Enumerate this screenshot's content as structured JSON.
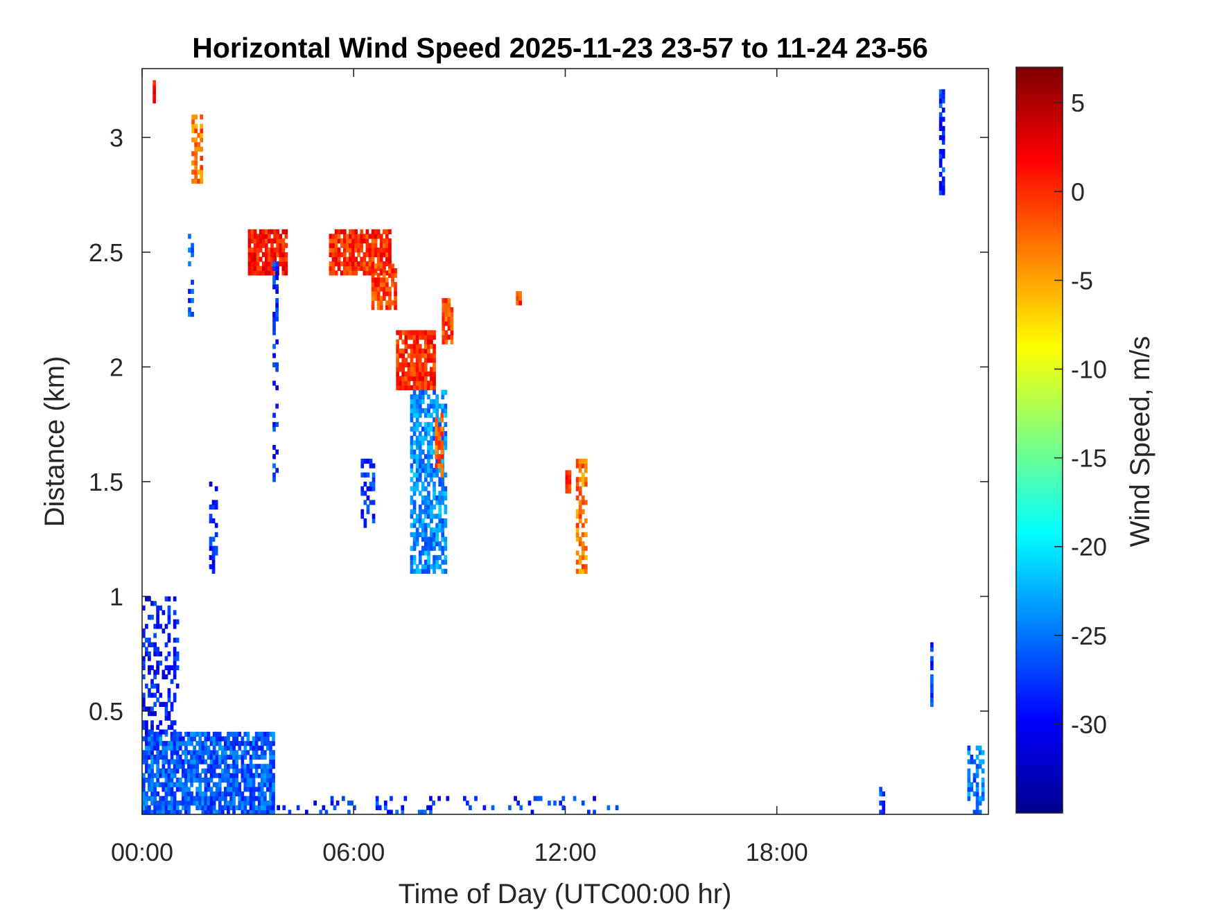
{
  "chart_data": {
    "type": "heatmap",
    "title": "Horizontal Wind Speed 2025-11-23 23-57 to 11-24 23-56",
    "xlabel": "Time of Day (UTC00:00 hr)",
    "ylabel": "Distance (km)",
    "colorbar_label": "Wind Speed, m/s",
    "colormap": "jet",
    "grid": false,
    "x_range_hours": [
      0,
      24
    ],
    "y_range_km": [
      0.05,
      3.3
    ],
    "color_range": [
      -35,
      7
    ],
    "x_ticks": [
      {
        "value": 0,
        "label": "00:00"
      },
      {
        "value": 6,
        "label": "06:00"
      },
      {
        "value": 12,
        "label": "12:00"
      },
      {
        "value": 18,
        "label": "18:00"
      }
    ],
    "y_ticks": [
      {
        "value": 0.5,
        "label": "0.5"
      },
      {
        "value": 1,
        "label": "1"
      },
      {
        "value": 1.5,
        "label": "1.5"
      },
      {
        "value": 2,
        "label": "2"
      },
      {
        "value": 2.5,
        "label": "2.5"
      },
      {
        "value": 3,
        "label": "3"
      }
    ],
    "colorbar_ticks": [
      {
        "value": 5,
        "label": "5"
      },
      {
        "value": 0,
        "label": "0"
      },
      {
        "value": -5,
        "label": "-5"
      },
      {
        "value": -10,
        "label": "-10"
      },
      {
        "value": -15,
        "label": "-15"
      },
      {
        "value": -20,
        "label": "-20"
      },
      {
        "value": -25,
        "label": "-25"
      },
      {
        "value": -30,
        "label": "-30"
      }
    ],
    "features": [
      {
        "t": [
          0.0,
          3.7
        ],
        "z": [
          0.05,
          0.4
        ],
        "v": -26,
        "density": 0.8
      },
      {
        "t": [
          0.0,
          1.0
        ],
        "z": [
          0.4,
          1.0
        ],
        "v": -29,
        "density": 0.35
      },
      {
        "t": [
          3.5,
          13.5
        ],
        "z": [
          0.05,
          0.12
        ],
        "v": -28,
        "density": 0.14
      },
      {
        "t": [
          0.3,
          0.35
        ],
        "z": [
          3.15,
          3.25
        ],
        "v": 2,
        "density": 1.0
      },
      {
        "t": [
          1.4,
          1.7
        ],
        "z": [
          2.8,
          3.1
        ],
        "v": -3,
        "density": 0.75
      },
      {
        "t": [
          1.3,
          1.4
        ],
        "z": [
          2.2,
          2.6
        ],
        "v": -27,
        "density": 0.5
      },
      {
        "t": [
          3.0,
          4.1
        ],
        "z": [
          2.4,
          2.6
        ],
        "v": 1,
        "density": 0.85
      },
      {
        "t": [
          5.3,
          7.0
        ],
        "z": [
          2.4,
          2.6
        ],
        "v": 0,
        "density": 0.85
      },
      {
        "t": [
          6.5,
          7.2
        ],
        "z": [
          2.25,
          2.45
        ],
        "v": -1,
        "density": 0.8
      },
      {
        "t": [
          7.2,
          8.3
        ],
        "z": [
          1.9,
          2.15
        ],
        "v": 0,
        "density": 0.85
      },
      {
        "t": [
          8.5,
          8.8
        ],
        "z": [
          2.1,
          2.3
        ],
        "v": -1,
        "density": 0.8
      },
      {
        "t": [
          7.6,
          8.6
        ],
        "z": [
          1.1,
          1.9
        ],
        "v": -24,
        "density": 0.65
      },
      {
        "t": [
          8.3,
          8.5
        ],
        "z": [
          1.5,
          1.8
        ],
        "v": -2,
        "density": 0.6
      },
      {
        "t": [
          10.6,
          10.7
        ],
        "z": [
          2.27,
          2.33
        ],
        "v": -1,
        "density": 1.0
      },
      {
        "t": [
          12.0,
          12.1
        ],
        "z": [
          1.45,
          1.55
        ],
        "v": 0,
        "density": 1.0
      },
      {
        "t": [
          12.3,
          12.55
        ],
        "z": [
          1.1,
          1.6
        ],
        "v": -3,
        "density": 0.6
      },
      {
        "t": [
          3.7,
          3.85
        ],
        "z": [
          1.5,
          2.45
        ],
        "v": -28,
        "density": 0.45
      },
      {
        "t": [
          1.9,
          2.1
        ],
        "z": [
          1.1,
          1.5
        ],
        "v": -29,
        "density": 0.35
      },
      {
        "t": [
          6.2,
          6.6
        ],
        "z": [
          1.3,
          1.6
        ],
        "v": -28,
        "density": 0.4
      },
      {
        "t": [
          22.6,
          22.7
        ],
        "z": [
          2.75,
          3.2
        ],
        "v": -28,
        "density": 0.6
      },
      {
        "t": [
          22.35,
          22.42
        ],
        "z": [
          0.5,
          0.8
        ],
        "v": -28,
        "density": 0.8
      },
      {
        "t": [
          23.4,
          23.8
        ],
        "z": [
          0.05,
          0.35
        ],
        "v": -25,
        "density": 0.5
      },
      {
        "t": [
          20.9,
          21.0
        ],
        "z": [
          0.05,
          0.2
        ],
        "v": -27,
        "density": 0.6
      }
    ]
  }
}
